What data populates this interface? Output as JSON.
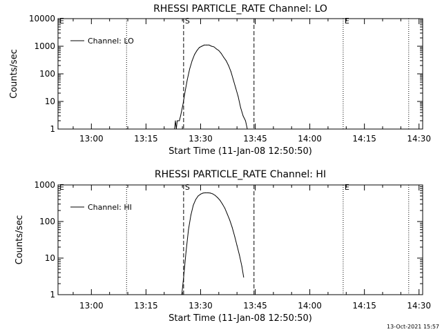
{
  "footer": {
    "timestamp": "13-Oct-2021 15:57"
  },
  "chart_data": [
    {
      "type": "line",
      "title": "RHESSI PARTICLE_RATE Channel: LO",
      "xlabel": "Start Time (11-Jan-08 12:50:50)",
      "ylabel": "Counts/sec",
      "yscale": "log",
      "ylim": [
        1,
        10000
      ],
      "xlim": [
        "12:50:50",
        "14:31:00"
      ],
      "x_ticks": [
        "13:00",
        "13:15",
        "13:30",
        "13:45",
        "14:00",
        "14:15",
        "14:30"
      ],
      "y_ticks": [
        "1",
        "10",
        "100",
        "1000",
        "10000"
      ],
      "markers": [
        {
          "label": "E",
          "time": "12:50:50",
          "style": "dotted"
        },
        {
          "label": "",
          "time": "13:09:40",
          "style": "dotted"
        },
        {
          "label": "S",
          "time": "13:25:20",
          "style": "dashed"
        },
        {
          "label": "",
          "time": "13:44:40",
          "style": "dashed"
        },
        {
          "label": "E",
          "time": "14:09:10",
          "style": "dotted"
        },
        {
          "label": "",
          "time": "14:27:10",
          "style": "dotted"
        }
      ],
      "legend": {
        "position": "top-left",
        "entries": [
          "Channel: LO"
        ]
      },
      "series": [
        {
          "name": "Channel: LO",
          "x": [
            "13:22:50",
            "13:23:05",
            "13:23:20",
            "13:23:35",
            "13:23:50",
            "13:24:10",
            "13:24:30",
            "13:25:10",
            "13:25:40",
            "13:26:20",
            "13:27:00",
            "13:27:40",
            "13:28:20",
            "13:29:00",
            "13:29:40",
            "13:30:20",
            "13:31:00",
            "13:31:40",
            "13:32:20",
            "13:33:00",
            "13:33:40",
            "13:34:20",
            "13:35:00",
            "13:35:40",
            "13:36:20",
            "13:37:00",
            "13:37:40",
            "13:38:20",
            "13:39:00",
            "13:39:40",
            "13:40:20",
            "13:41:00",
            "13:41:40",
            "13:42:20",
            "13:42:50"
          ],
          "y": [
            1,
            2,
            1,
            2,
            2,
            2,
            3,
            8,
            20,
            60,
            150,
            300,
            500,
            700,
            900,
            1000,
            1100,
            1100,
            1100,
            1000,
            950,
            800,
            700,
            550,
            400,
            300,
            200,
            120,
            60,
            30,
            15,
            6,
            3,
            2,
            1
          ]
        }
      ]
    },
    {
      "type": "line",
      "title": "RHESSI PARTICLE_RATE Channel: HI",
      "xlabel": "Start Time (11-Jan-08 12:50:50)",
      "ylabel": "Counts/sec",
      "yscale": "log",
      "ylim": [
        1,
        1000
      ],
      "xlim": [
        "12:50:50",
        "14:31:00"
      ],
      "x_ticks": [
        "13:00",
        "13:15",
        "13:30",
        "13:45",
        "14:00",
        "14:15",
        "14:30"
      ],
      "y_ticks": [
        "1",
        "10",
        "100",
        "1000"
      ],
      "markers": [
        {
          "label": "E",
          "time": "12:50:50",
          "style": "dotted"
        },
        {
          "label": "",
          "time": "13:09:40",
          "style": "dotted"
        },
        {
          "label": "S",
          "time": "13:25:20",
          "style": "dashed"
        },
        {
          "label": "",
          "time": "13:44:40",
          "style": "dashed"
        },
        {
          "label": "E",
          "time": "14:09:10",
          "style": "dotted"
        },
        {
          "label": "",
          "time": "14:27:10",
          "style": "dotted"
        }
      ],
      "legend": {
        "position": "top-left",
        "entries": [
          "Channel: HI"
        ]
      },
      "series": [
        {
          "name": "Channel: HI",
          "x": [
            "13:24:50",
            "13:25:20",
            "13:26:00",
            "13:26:40",
            "13:27:20",
            "13:28:00",
            "13:28:40",
            "13:29:20",
            "13:30:00",
            "13:30:40",
            "13:31:20",
            "13:32:00",
            "13:32:40",
            "13:33:20",
            "13:34:00",
            "13:34:40",
            "13:35:20",
            "13:36:00",
            "13:36:40",
            "13:37:20",
            "13:38:00",
            "13:38:40",
            "13:39:20",
            "13:40:00",
            "13:40:40",
            "13:41:20",
            "13:41:50"
          ],
          "y": [
            1,
            3,
            15,
            60,
            150,
            280,
            400,
            500,
            560,
            600,
            610,
            610,
            600,
            570,
            520,
            450,
            380,
            300,
            230,
            160,
            110,
            70,
            40,
            22,
            12,
            6,
            3
          ]
        }
      ]
    }
  ]
}
